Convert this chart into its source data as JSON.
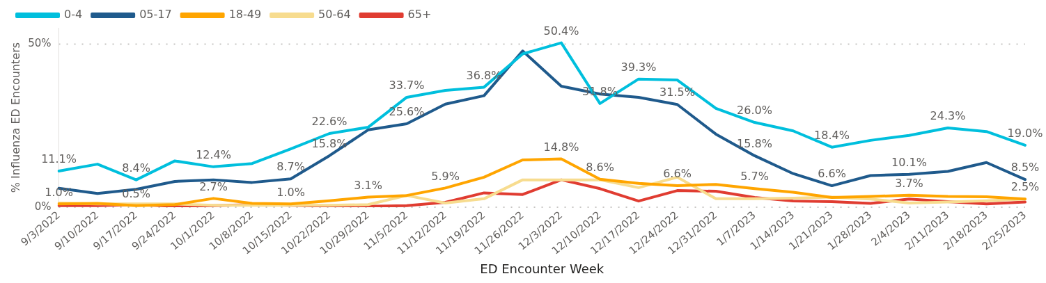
{
  "chart_data": {
    "type": "line",
    "xlabel": "ED Encounter Week",
    "ylabel": "% Influenza ED Encounters",
    "categories": [
      "9/3/2022",
      "9/10/2022",
      "9/17/2022",
      "9/24/2022",
      "10/1/2022",
      "10/8/2022",
      "10/15/2022",
      "10/22/2022",
      "10/29/2022",
      "11/5/2022",
      "11/12/2022",
      "11/19/2022",
      "11/26/2022",
      "12/3/2022",
      "12/10/2022",
      "12/17/2022",
      "12/24/2022",
      "12/31/2022",
      "1/7/2023",
      "1/14/2023",
      "1/21/2023",
      "1/28/2023",
      "2/4/2023",
      "2/11/2023",
      "2/18/2023",
      "2/25/2023"
    ],
    "series": [
      {
        "name": "0-4",
        "color": "#00bfdd",
        "values": [
          11.1,
          13.2,
          8.4,
          14.2,
          12.4,
          13.4,
          17.9,
          22.6,
          24.5,
          33.7,
          35.8,
          36.8,
          47,
          50.4,
          31.8,
          39.3,
          39,
          30.3,
          26.0,
          23.4,
          18.4,
          20.5,
          22,
          24.3,
          23.2,
          19.0
        ],
        "value_labels": [
          "11.1%",
          null,
          "8.4%",
          null,
          "12.4%",
          null,
          null,
          "22.6%",
          null,
          "33.7%",
          null,
          "36.8%",
          null,
          "50.4%",
          "31.8%",
          "39.3%",
          null,
          null,
          "26.0%",
          null,
          "18.4%",
          null,
          null,
          "24.3%",
          null,
          "19.0%"
        ]
      },
      {
        "name": "05-17",
        "color": "#1f5a8c",
        "values": [
          5.8,
          4.2,
          5.5,
          7.9,
          8.4,
          7.6,
          8.7,
          15.8,
          23.7,
          25.6,
          31.6,
          34.2,
          47.9,
          37.1,
          34.7,
          33.7,
          31.5,
          22.4,
          15.8,
          10.3,
          6.6,
          9.7,
          10.1,
          11,
          13.7,
          8.5
        ],
        "value_labels": [
          null,
          null,
          null,
          null,
          null,
          null,
          "8.7%",
          "15.8%",
          null,
          "25.6%",
          null,
          null,
          null,
          null,
          null,
          null,
          "31.5%",
          null,
          "15.8%",
          null,
          "6.6%",
          null,
          "10.1%",
          null,
          null,
          "8.5%"
        ]
      },
      {
        "name": "18-49",
        "color": "#ffa500",
        "values": [
          1.0,
          1.2,
          0.5,
          0.8,
          2.7,
          1.2,
          1.0,
          2.0,
          3.1,
          3.6,
          5.9,
          9.2,
          14.5,
          14.8,
          8.6,
          7.3,
          6.6,
          7.0,
          5.7,
          4.6,
          3.0,
          3.3,
          3.7,
          3.3,
          3.2,
          2.5
        ],
        "value_labels": [
          "1.0%",
          null,
          "0.5%",
          null,
          "2.7%",
          null,
          "1.0%",
          null,
          "3.1%",
          null,
          "5.9%",
          null,
          null,
          "14.8%",
          "8.6%",
          null,
          "6.6%",
          null,
          "5.7%",
          null,
          null,
          null,
          "3.7%",
          null,
          null,
          "2.5%"
        ]
      },
      {
        "name": "50-64",
        "color": "#f7dc8f",
        "values": [
          1.3,
          1,
          1,
          1,
          0.6,
          0.6,
          0.6,
          0.6,
          0.8,
          3.6,
          1.3,
          2.6,
          8.4,
          8.4,
          8.4,
          6.0,
          9.2,
          2.6,
          2.6,
          2.8,
          3.1,
          2.5,
          1.3,
          1.6,
          2.0,
          2.5
        ]
      },
      {
        "name": "65+",
        "color": "#e03c31",
        "values": [
          0.5,
          0.5,
          0.8,
          0.3,
          0.5,
          0.8,
          0.6,
          0.3,
          0.3,
          0.5,
          1.5,
          4.4,
          3.9,
          8.4,
          5.7,
          1.9,
          5.1,
          4.9,
          3.0,
          1.9,
          1.7,
          1.2,
          2.5,
          1.7,
          1.0,
          1.6
        ]
      }
    ],
    "ylim": [
      0,
      55
    ],
    "yticks": [
      {
        "value": 0,
        "label": "0%"
      },
      {
        "value": 50,
        "label": "50%"
      }
    ],
    "grid": "y",
    "legend": "top left",
    "marker": "none",
    "line_style": "solid"
  }
}
